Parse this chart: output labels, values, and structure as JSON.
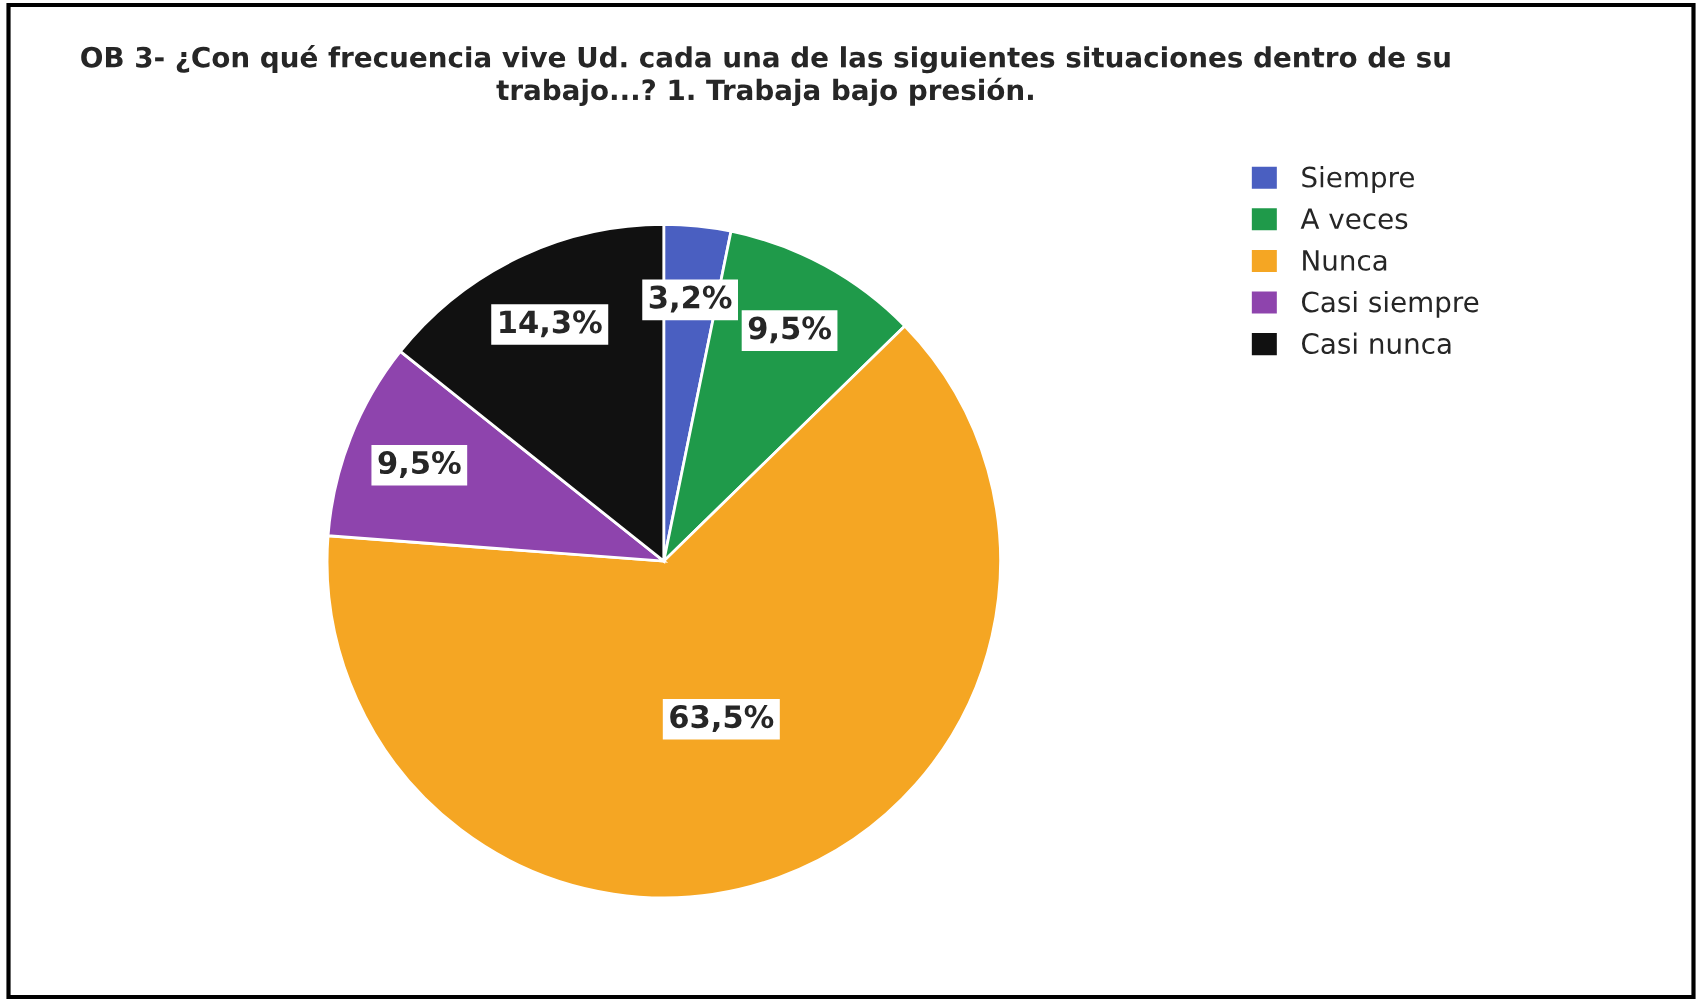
{
  "chart_data": {
    "type": "pie",
    "title": "OB 3- ¿Con qué frecuencia vive Ud. cada una de las siguientes situaciones dentro de su trabajo...? 1. Trabaja bajo presión.",
    "categories": [
      "Siempre",
      "A veces",
      "Nunca",
      "Casi siempre",
      "Casi nunca"
    ],
    "values": [
      3.2,
      9.5,
      63.5,
      9.5,
      14.3
    ],
    "value_labels": [
      "3,2%",
      "9,5%",
      "63,5%",
      "9,5%",
      "14,3%"
    ],
    "colors": [
      "#4a5fc1",
      "#1f9a4a",
      "#f5a623",
      "#8e44ad",
      "#111111"
    ],
    "legend": "top right"
  }
}
